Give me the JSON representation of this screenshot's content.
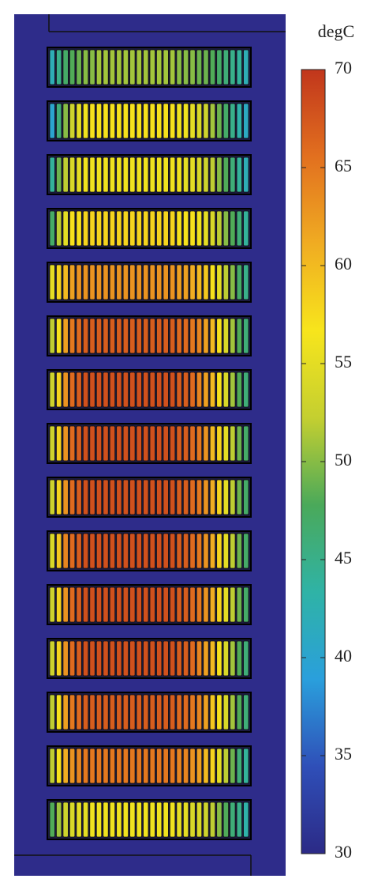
{
  "chart_data": {
    "type": "heatmap",
    "colorbar_label": "degC",
    "clim": [
      30,
      70
    ],
    "cticks": [
      30,
      35,
      40,
      45,
      50,
      55,
      60,
      65,
      70
    ],
    "colormap": [
      "#2c2a86",
      "#2f4fb8",
      "#2a9fdc",
      "#2fb3a6",
      "#4aa95a",
      "#c4cf30",
      "#f7e51c",
      "#f0ac22",
      "#e2701f",
      "#c1361c"
    ],
    "background_color": "#2e2c8a",
    "z": [
      [
        42,
        45,
        47,
        48,
        49,
        50,
        50,
        51,
        51,
        51,
        51,
        51,
        51,
        51,
        51,
        51,
        51,
        51,
        51,
        50,
        50,
        50,
        49,
        49,
        48,
        47,
        46,
        45,
        44,
        42
      ],
      [
        40,
        46,
        50,
        53,
        55,
        56,
        57,
        57,
        57,
        57,
        57,
        57,
        57,
        57,
        57,
        57,
        57,
        57,
        57,
        56,
        56,
        55,
        54,
        53,
        51,
        49,
        47,
        45,
        43,
        41
      ],
      [
        44,
        49,
        52,
        54,
        55,
        56,
        56,
        56,
        56,
        56,
        56,
        56,
        56,
        56,
        56,
        56,
        56,
        56,
        56,
        56,
        55,
        55,
        54,
        53,
        52,
        50,
        48,
        46,
        44,
        42
      ],
      [
        47,
        52,
        55,
        57,
        57,
        58,
        58,
        58,
        58,
        58,
        58,
        58,
        58,
        58,
        58,
        58,
        58,
        58,
        58,
        57,
        57,
        57,
        56,
        55,
        54,
        52,
        50,
        48,
        46,
        44
      ],
      [
        55,
        58,
        60,
        62,
        63,
        63,
        63,
        63,
        63,
        63,
        63,
        63,
        63,
        63,
        63,
        63,
        63,
        63,
        63,
        62,
        62,
        61,
        60,
        59,
        57,
        55,
        52,
        50,
        47,
        45
      ],
      [
        52,
        57,
        62,
        65,
        66,
        67,
        67,
        67,
        67,
        67,
        67,
        67,
        67,
        67,
        67,
        67,
        67,
        67,
        67,
        66,
        66,
        65,
        64,
        62,
        60,
        57,
        54,
        51,
        48,
        46
      ],
      [
        53,
        58,
        63,
        66,
        67,
        68,
        68,
        68,
        68,
        68,
        68,
        68,
        68,
        68,
        68,
        68,
        68,
        68,
        68,
        67,
        67,
        66,
        64,
        62,
        60,
        57,
        54,
        51,
        48,
        46
      ],
      [
        53,
        58,
        63,
        66,
        67,
        68,
        68,
        68,
        68,
        68,
        68,
        68,
        68,
        68,
        68,
        68,
        68,
        68,
        68,
        67,
        67,
        66,
        65,
        63,
        60,
        58,
        55,
        52,
        49,
        47
      ],
      [
        53,
        58,
        63,
        66,
        67,
        68,
        68,
        68,
        68,
        68,
        68,
        68,
        68,
        68,
        68,
        68,
        68,
        68,
        68,
        67,
        67,
        66,
        65,
        63,
        61,
        58,
        55,
        52,
        49,
        47
      ],
      [
        54,
        59,
        64,
        66,
        67,
        68,
        68,
        68,
        68,
        68,
        68,
        68,
        68,
        68,
        68,
        68,
        68,
        68,
        68,
        67,
        67,
        66,
        65,
        63,
        61,
        58,
        55,
        52,
        49,
        47
      ],
      [
        53,
        58,
        63,
        66,
        67,
        68,
        68,
        68,
        68,
        68,
        68,
        68,
        68,
        68,
        68,
        68,
        68,
        68,
        68,
        67,
        67,
        66,
        65,
        63,
        61,
        58,
        55,
        52,
        49,
        47
      ],
      [
        53,
        58,
        63,
        66,
        67,
        68,
        68,
        68,
        68,
        68,
        68,
        68,
        68,
        68,
        68,
        68,
        68,
        68,
        68,
        67,
        67,
        66,
        64,
        62,
        60,
        57,
        54,
        51,
        48,
        46
      ],
      [
        52,
        57,
        62,
        65,
        66,
        67,
        67,
        67,
        67,
        67,
        67,
        67,
        67,
        67,
        67,
        67,
        67,
        67,
        67,
        66,
        66,
        65,
        64,
        62,
        59,
        57,
        54,
        51,
        48,
        46
      ],
      [
        52,
        57,
        61,
        63,
        64,
        65,
        65,
        65,
        65,
        65,
        65,
        65,
        65,
        65,
        65,
        65,
        65,
        65,
        65,
        64,
        64,
        63,
        62,
        60,
        58,
        55,
        52,
        49,
        46,
        44
      ],
      [
        48,
        51,
        53,
        54,
        55,
        55,
        56,
        56,
        56,
        56,
        56,
        56,
        56,
        56,
        56,
        56,
        56,
        56,
        56,
        55,
        55,
        54,
        54,
        53,
        52,
        50,
        48,
        46,
        45,
        43
      ]
    ]
  }
}
